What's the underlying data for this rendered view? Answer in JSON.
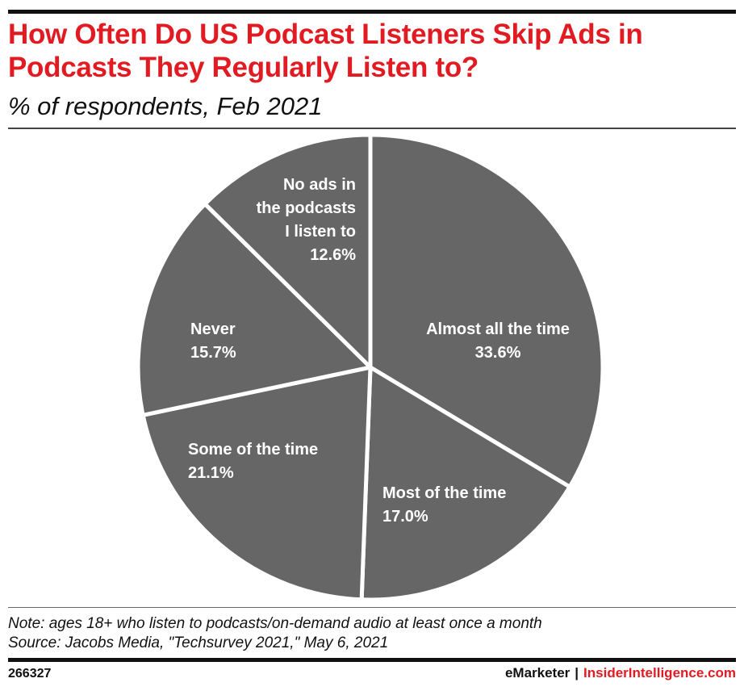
{
  "header": {
    "title": "How Often Do US Podcast Listeners Skip Ads in Podcasts They Regularly Listen to?",
    "subtitle": "% of respondents, Feb 2021"
  },
  "chart_data": {
    "type": "pie",
    "title": "How Often Do US Podcast Listeners Skip Ads in Podcasts They Regularly Listen to?",
    "subtitle": "% of respondents, Feb 2021",
    "slices": [
      {
        "label": "Almost all the time",
        "value": 33.6,
        "display": "33.6%"
      },
      {
        "label": "Most of the time",
        "value": 17.0,
        "display": "17.0%"
      },
      {
        "label": "Some of the time",
        "value": 21.1,
        "display": "21.1%"
      },
      {
        "label": "Never",
        "value": 15.7,
        "display": "15.7%"
      },
      {
        "label": "No ads in the podcasts I listen to",
        "value": 12.6,
        "display": "12.6%"
      }
    ],
    "slice_color": "#666666",
    "separator_color": "#ffffff"
  },
  "footer": {
    "note": "Note: ages 18+ who listen to podcasts/on-demand audio at least once a month",
    "source": "Source: Jacobs Media, \"Techsurvey 2021,\" May 6, 2021",
    "chart_id": "266327",
    "brand_left": "eMarketer",
    "brand_sep": "|",
    "brand_right": "InsiderIntelligence.com"
  },
  "colors": {
    "accent": "#e21b22",
    "text": "#111111"
  }
}
